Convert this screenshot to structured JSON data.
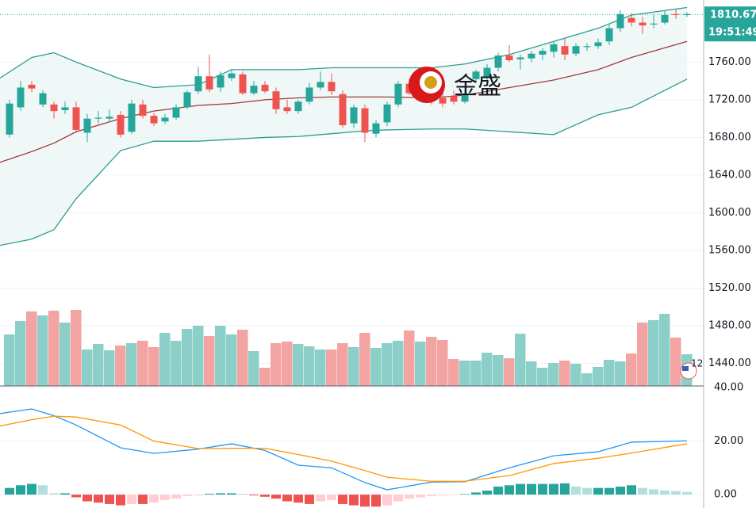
{
  "chart_data": {
    "type": "candlestick",
    "x": [
      0,
      1,
      2,
      3,
      4,
      5,
      6,
      7,
      8,
      9,
      10,
      11,
      12,
      13,
      14,
      15,
      16,
      17,
      18,
      19,
      20,
      21,
      22,
      23,
      24,
      25,
      26,
      27,
      28,
      29,
      30,
      31,
      32,
      33,
      34,
      35,
      36,
      37,
      38,
      39,
      40,
      41,
      42,
      43,
      44,
      45,
      46,
      47,
      48,
      49,
      50,
      51,
      52,
      53,
      54,
      55,
      56,
      57,
      58,
      59,
      60,
      61
    ],
    "open": [
      1683,
      1712,
      1736,
      1715,
      1715,
      1709,
      1712,
      1685,
      1700,
      1700,
      1704,
      1686,
      1715,
      1703,
      1697,
      1701,
      1712,
      1729,
      1745,
      1733,
      1743,
      1747,
      1727,
      1736,
      1729,
      1712,
      1708,
      1718,
      1733,
      1739,
      1726,
      1695,
      1711,
      1684,
      1696,
      1715,
      1737,
      1727,
      1733,
      1722,
      1724,
      1718,
      1742,
      1743,
      1754,
      1767,
      1763,
      1764,
      1768,
      1771,
      1777,
      1769,
      1776,
      1777,
      1782,
      1796,
      1807,
      1802,
      1800,
      1802,
      1811,
      1810
    ],
    "high": [
      1720,
      1740,
      1740,
      1730,
      1718,
      1718,
      1718,
      1705,
      1708,
      1710,
      1708,
      1720,
      1720,
      1706,
      1705,
      1715,
      1730,
      1755,
      1768,
      1750,
      1752,
      1750,
      1740,
      1740,
      1733,
      1720,
      1720,
      1738,
      1750,
      1748,
      1730,
      1715,
      1715,
      1698,
      1718,
      1740,
      1742,
      1740,
      1738,
      1730,
      1730,
      1730,
      1752,
      1758,
      1770,
      1778,
      1768,
      1772,
      1775,
      1782,
      1785,
      1780,
      1780,
      1785,
      1800,
      1815,
      1812,
      1808,
      1810,
      1815,
      1816,
      1813
    ],
    "low": [
      1680,
      1708,
      1728,
      1712,
      1700,
      1705,
      1685,
      1675,
      1695,
      1696,
      1680,
      1684,
      1700,
      1692,
      1694,
      1699,
      1710,
      1726,
      1728,
      1728,
      1740,
      1725,
      1725,
      1727,
      1705,
      1705,
      1705,
      1715,
      1730,
      1725,
      1690,
      1690,
      1675,
      1680,
      1692,
      1712,
      1725,
      1722,
      1715,
      1712,
      1715,
      1716,
      1738,
      1740,
      1750,
      1760,
      1752,
      1760,
      1762,
      1765,
      1762,
      1766,
      1772,
      1774,
      1778,
      1792,
      1798,
      1790,
      1796,
      1800,
      1806,
      1808
    ],
    "close": [
      1716,
      1733,
      1732,
      1727,
      1708,
      1712,
      1688,
      1700,
      1701,
      1702,
      1683,
      1716,
      1703,
      1695,
      1701,
      1712,
      1728,
      1745,
      1731,
      1746,
      1748,
      1727,
      1735,
      1729,
      1710,
      1708,
      1718,
      1733,
      1739,
      1729,
      1693,
      1712,
      1685,
      1695,
      1715,
      1737,
      1727,
      1733,
      1720,
      1716,
      1718,
      1726,
      1750,
      1754,
      1767,
      1762,
      1765,
      1769,
      1772,
      1779,
      1768,
      1777,
      1777,
      1781,
      1796,
      1811,
      1802,
      1799,
      1801,
      1810,
      1810,
      1811
    ],
    "up_color": "#26a69a",
    "down_color": "#ef5350",
    "ylim": [
      1416,
      1826
    ],
    "yticks": [
      {
        "value": 1760,
        "label": "1760.00"
      },
      {
        "value": 1720,
        "label": "1720.00"
      },
      {
        "value": 1680,
        "label": "1680.00"
      },
      {
        "value": 1640,
        "label": "1640.00"
      },
      {
        "value": 1600,
        "label": "1600.00"
      },
      {
        "value": 1560,
        "label": "1560.00"
      },
      {
        "value": 1520,
        "label": "1520.00"
      },
      {
        "value": 1480,
        "label": "1480.00"
      },
      {
        "value": 1440,
        "label": "1440.00"
      }
    ],
    "last_price": {
      "value": 1810.67,
      "label": "1810.67"
    },
    "time_label": "19:51:49",
    "volume": {
      "ylim": [
        0,
        100
      ],
      "up_color": "#8ccfc8",
      "down_color": "#f3a3a1",
      "values": [
        65,
        82,
        94,
        89,
        95,
        80,
        96,
        46,
        53,
        45,
        51,
        54,
        57,
        49,
        67,
        57,
        72,
        76,
        63,
        76,
        65,
        71,
        44,
        23,
        54,
        56,
        53,
        50,
        46,
        46,
        54,
        49,
        67,
        48,
        54,
        57,
        70,
        56,
        62,
        58,
        34,
        32,
        32,
        42,
        39,
        35,
        66,
        31,
        23,
        29,
        32,
        28,
        16,
        24,
        33,
        31,
        41,
        80,
        83,
        91,
        61,
        40
      ]
    },
    "bands": {
      "x": [
        -1,
        2,
        4,
        6,
        10,
        13,
        17,
        20,
        23,
        26,
        29,
        32,
        34,
        38,
        41,
        45,
        49,
        53,
        56,
        61
      ],
      "upper": {
        "color": "#2a9d8f",
        "values": [
          1742,
          1765,
          1770,
          1760,
          1742,
          1733,
          1736,
          1752,
          1752,
          1752,
          1754,
          1754,
          1754,
          1754,
          1758,
          1768,
          1782,
          1796,
          1810,
          1818
        ]
      },
      "middle": {
        "color": "#9c3b3b",
        "values": [
          1653,
          1665,
          1674,
          1686,
          1700,
          1708,
          1714,
          1716,
          1720,
          1722,
          1723,
          1723,
          1723,
          1722,
          1725,
          1733,
          1741,
          1752,
          1765,
          1782
        ]
      },
      "lower": {
        "color": "#2a9d8f",
        "values": [
          1565,
          1572,
          1582,
          1615,
          1666,
          1676,
          1676,
          1678,
          1680,
          1681,
          1684,
          1687,
          1688,
          1689,
          1689,
          1686,
          1683,
          1704,
          1712,
          1742
        ]
      },
      "fill": "#e6f4f2"
    },
    "macd": {
      "ylim": [
        -5,
        40.6
      ],
      "yticks": [
        {
          "value": 40,
          "label": "40.00"
        },
        {
          "value": 20,
          "label": "20.00"
        },
        {
          "value": 0,
          "label": "0.00"
        }
      ],
      "x": [
        -1,
        2,
        4,
        6,
        10,
        13,
        17,
        20,
        23,
        26,
        29,
        32,
        34,
        38,
        41,
        45,
        49,
        53,
        56,
        61
      ],
      "macd": {
        "color": "#2196f3",
        "values": [
          30.2,
          32,
          29.5,
          26,
          17.5,
          15.4,
          17,
          19,
          16.5,
          11,
          10,
          4.5,
          1.8,
          4.7,
          4.8,
          10,
          14.5,
          16,
          19.6,
          20.1
        ]
      },
      "signal": {
        "color": "#ff9800",
        "values": [
          25.5,
          28,
          29.3,
          29,
          26,
          20,
          17.2,
          17.3,
          17.3,
          15,
          12.5,
          9,
          6.5,
          5,
          5,
          7.1,
          11.6,
          13.6,
          15.5,
          19
        ]
      },
      "histogram": [
        2.5,
        3.5,
        4,
        3.5,
        0.5,
        0.5,
        -1,
        -2.5,
        -3,
        -3.5,
        -4,
        -3.5,
        -3.5,
        -3,
        -2,
        -1.5,
        -0.5,
        -0.3,
        0.3,
        0.5,
        0.5,
        0.3,
        -0.3,
        -0.8,
        -1.5,
        -2.5,
        -3,
        -3.5,
        -2.5,
        -2,
        -3.5,
        -4,
        -4.5,
        -4.5,
        -4,
        -2.5,
        -1.5,
        -1,
        -0.5,
        -0.3,
        -0.2,
        0.2,
        0.8,
        1.5,
        3,
        3.5,
        4,
        4,
        4,
        4,
        4.2,
        3,
        2.5,
        2.5,
        2.5,
        3,
        3.5,
        2.5,
        2,
        1.5,
        1.3,
        1
      ]
    },
    "watermark": "金盛",
    "event_label": "12"
  }
}
